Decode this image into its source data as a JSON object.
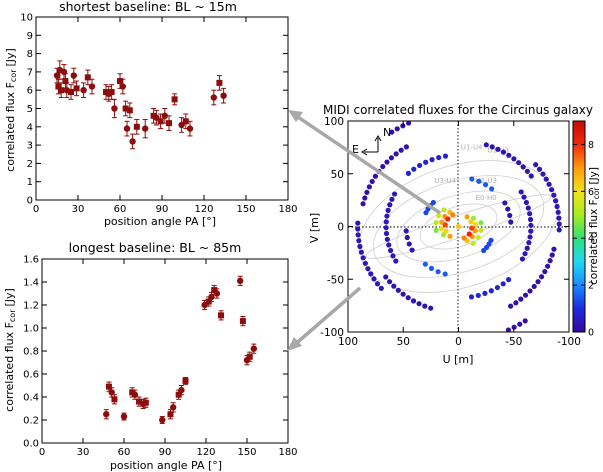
{
  "chart_data": [
    {
      "type": "scatter",
      "panel": "top-left",
      "title": "shortest baseline: BL ~ 15m",
      "xlabel": "position angle PA [°]",
      "ylabel": "correlated flux F_cor [Jy]",
      "ylabel_main": "correlated flux F",
      "ylabel_sub": "cor",
      "ylabel_unit": "[Jy]",
      "xlim": [
        0,
        180
      ],
      "ylim": [
        0,
        10
      ],
      "xticks": [
        0,
        30,
        60,
        90,
        120,
        150,
        180
      ],
      "yticks": [
        0,
        1,
        2,
        3,
        4,
        5,
        6,
        7,
        8,
        9,
        10
      ],
      "marker_color": "#8b0d0d",
      "points": [
        {
          "x": 15,
          "y": 6.8,
          "err": 0.4,
          "m": "c"
        },
        {
          "x": 16,
          "y": 6.2,
          "err": 0.4,
          "m": "s"
        },
        {
          "x": 17,
          "y": 7.1,
          "err": 0.5,
          "m": "c"
        },
        {
          "x": 18,
          "y": 6.0,
          "err": 0.4,
          "m": "s"
        },
        {
          "x": 20,
          "y": 7.0,
          "err": 0.4,
          "m": "c"
        },
        {
          "x": 21,
          "y": 6.5,
          "err": 0.4,
          "m": "s"
        },
        {
          "x": 22,
          "y": 6.0,
          "err": 0.4,
          "m": "c"
        },
        {
          "x": 25,
          "y": 5.9,
          "err": 0.4,
          "m": "s"
        },
        {
          "x": 27,
          "y": 6.8,
          "err": 0.4,
          "m": "c"
        },
        {
          "x": 29,
          "y": 6.1,
          "err": 0.4,
          "m": "s"
        },
        {
          "x": 34,
          "y": 6.0,
          "err": 0.4,
          "m": "c"
        },
        {
          "x": 37,
          "y": 6.7,
          "err": 0.4,
          "m": "s"
        },
        {
          "x": 40,
          "y": 6.2,
          "err": 0.4,
          "m": "c"
        },
        {
          "x": 50,
          "y": 5.9,
          "err": 0.4,
          "m": "s"
        },
        {
          "x": 52,
          "y": 5.8,
          "err": 0.4,
          "m": "c"
        },
        {
          "x": 54,
          "y": 5.9,
          "err": 0.4,
          "m": "s"
        },
        {
          "x": 56,
          "y": 5.0,
          "err": 0.5,
          "m": "c"
        },
        {
          "x": 60,
          "y": 6.5,
          "err": 0.4,
          "m": "s"
        },
        {
          "x": 62,
          "y": 6.2,
          "err": 0.4,
          "m": "c"
        },
        {
          "x": 64,
          "y": 5.0,
          "err": 0.4,
          "m": "s"
        },
        {
          "x": 65,
          "y": 3.9,
          "err": 0.4,
          "m": "c"
        },
        {
          "x": 67,
          "y": 4.9,
          "err": 0.4,
          "m": "s"
        },
        {
          "x": 69,
          "y": 3.2,
          "err": 0.4,
          "m": "c"
        },
        {
          "x": 72,
          "y": 4.0,
          "err": 0.4,
          "m": "s"
        },
        {
          "x": 78,
          "y": 3.9,
          "err": 0.5,
          "m": "c"
        },
        {
          "x": 84,
          "y": 4.6,
          "err": 0.4,
          "m": "s"
        },
        {
          "x": 86,
          "y": 4.5,
          "err": 0.4,
          "m": "c"
        },
        {
          "x": 89,
          "y": 4.3,
          "err": 0.4,
          "m": "s"
        },
        {
          "x": 92,
          "y": 4.6,
          "err": 0.4,
          "m": "c"
        },
        {
          "x": 95,
          "y": 4.2,
          "err": 0.4,
          "m": "s"
        },
        {
          "x": 99,
          "y": 5.5,
          "err": 0.3,
          "m": "s"
        },
        {
          "x": 104,
          "y": 4.1,
          "err": 0.4,
          "m": "c"
        },
        {
          "x": 107,
          "y": 4.3,
          "err": 0.4,
          "m": "s"
        },
        {
          "x": 110,
          "y": 3.9,
          "err": 0.4,
          "m": "c"
        },
        {
          "x": 127,
          "y": 5.6,
          "err": 0.4,
          "m": "c"
        },
        {
          "x": 131,
          "y": 6.4,
          "err": 0.4,
          "m": "s"
        },
        {
          "x": 134,
          "y": 5.7,
          "err": 0.4,
          "m": "c"
        }
      ]
    },
    {
      "type": "scatter",
      "panel": "bottom-left",
      "title": "longest baseline: BL ~ 85m",
      "xlabel": "position angle PA [°]",
      "ylabel": "correlated flux F_cor [Jy]",
      "ylabel_main": "correlated flux F",
      "ylabel_sub": "cor",
      "ylabel_unit": "[Jy]",
      "xlim": [
        0,
        180
      ],
      "ylim": [
        0,
        1.6
      ],
      "xticks": [
        0,
        30,
        60,
        90,
        120,
        150,
        180
      ],
      "yticks": [
        "0.0",
        "0.2",
        "0.4",
        "0.6",
        "0.8",
        "1.0",
        "1.2",
        "1.4",
        "1.6"
      ],
      "marker_color": "#8b0d0d",
      "points": [
        {
          "x": 47,
          "y": 0.25,
          "err": 0.04,
          "m": "c"
        },
        {
          "x": 49,
          "y": 0.49,
          "err": 0.04,
          "m": "s"
        },
        {
          "x": 51,
          "y": 0.44,
          "err": 0.04,
          "m": "c"
        },
        {
          "x": 53,
          "y": 0.38,
          "err": 0.04,
          "m": "s"
        },
        {
          "x": 60,
          "y": 0.23,
          "err": 0.03,
          "m": "c"
        },
        {
          "x": 66,
          "y": 0.44,
          "err": 0.04,
          "m": "s"
        },
        {
          "x": 68,
          "y": 0.42,
          "err": 0.04,
          "m": "c"
        },
        {
          "x": 71,
          "y": 0.36,
          "err": 0.04,
          "m": "s"
        },
        {
          "x": 74,
          "y": 0.34,
          "err": 0.04,
          "m": "c"
        },
        {
          "x": 76,
          "y": 0.35,
          "err": 0.04,
          "m": "s"
        },
        {
          "x": 88,
          "y": 0.2,
          "err": 0.03,
          "m": "c"
        },
        {
          "x": 94,
          "y": 0.25,
          "err": 0.04,
          "m": "s"
        },
        {
          "x": 96,
          "y": 0.31,
          "err": 0.04,
          "m": "c"
        },
        {
          "x": 100,
          "y": 0.42,
          "err": 0.04,
          "m": "s"
        },
        {
          "x": 102,
          "y": 0.46,
          "err": 0.04,
          "m": "c"
        },
        {
          "x": 105,
          "y": 0.54,
          "err": 0.03,
          "m": "s"
        },
        {
          "x": 119,
          "y": 1.2,
          "err": 0.04,
          "m": "c"
        },
        {
          "x": 122,
          "y": 1.23,
          "err": 0.04,
          "m": "s"
        },
        {
          "x": 124,
          "y": 1.27,
          "err": 0.04,
          "m": "c"
        },
        {
          "x": 126,
          "y": 1.33,
          "err": 0.04,
          "m": "s"
        },
        {
          "x": 128,
          "y": 1.3,
          "err": 0.04,
          "m": "c"
        },
        {
          "x": 131,
          "y": 1.11,
          "err": 0.04,
          "m": "s"
        },
        {
          "x": 145,
          "y": 1.41,
          "err": 0.04,
          "m": "c"
        },
        {
          "x": 147,
          "y": 1.06,
          "err": 0.04,
          "m": "s"
        },
        {
          "x": 150,
          "y": 0.72,
          "err": 0.04,
          "m": "c"
        },
        {
          "x": 152,
          "y": 0.75,
          "err": 0.04,
          "m": "s"
        },
        {
          "x": 155,
          "y": 0.82,
          "err": 0.04,
          "m": "c"
        }
      ]
    },
    {
      "type": "scatter",
      "panel": "right",
      "title": "MIDI correlated fluxes for the Circinus galaxy",
      "xlabel": "U [m]",
      "ylabel": "V [m]",
      "xlim": [
        100,
        -100
      ],
      "ylim": [
        -100,
        100
      ],
      "xticks": [
        100,
        50,
        0,
        -50,
        -100
      ],
      "yticks": [
        -100,
        -50,
        0,
        50,
        100
      ],
      "compass": {
        "north": "N",
        "east": "E"
      },
      "baseline_labels": [
        "U1-U4",
        "U1-U3",
        "U3-U4",
        "U2-U3",
        "E0-H0"
      ],
      "colorbar": {
        "label": "correlated flux F_cor [Jy]",
        "label_main": "correlated flux F",
        "label_sub": "cor",
        "label_unit": "[Jy]",
        "min": 0,
        "max": 9,
        "ticks": [
          0,
          2,
          4,
          6,
          8
        ],
        "stops": [
          "#3a0a9c",
          "#1c2ae0",
          "#1a8cff",
          "#22d8f2",
          "#30e07a",
          "#a8ec20",
          "#f4e21a",
          "#ff9a10",
          "#f22a0a",
          "#c40a08"
        ]
      },
      "tracks": [
        {
          "u": 83,
          "v": 69,
          "f": 0.1,
          "pa_from": 0,
          "pa_to": 34
        },
        {
          "u": 79,
          "v": 41,
          "f": 0.2,
          "pa_from": 32,
          "pa_to": 76
        },
        {
          "u": 63,
          "v": 18,
          "f": 0.4,
          "pa_from": 62,
          "pa_to": 120
        },
        {
          "u": 91,
          "v": -6,
          "f": 0.4,
          "pa_from": 88,
          "pa_to": 130
        },
        {
          "u": 73,
          "v": -36,
          "f": 0.3,
          "pa_from": 126,
          "pa_to": 162
        },
        {
          "u": 35,
          "v": 58,
          "f": 0.8,
          "pa_from": 10,
          "pa_to": 42
        },
        {
          "u": 44,
          "v": -18,
          "f": 0.3,
          "pa_from": 95,
          "pa_to": 118
        },
        {
          "u": 24,
          "v": -40,
          "f": 1.5,
          "pa_from": 140,
          "pa_to": 165
        },
        {
          "u": 26,
          "v": 19,
          "f": 1.3,
          "pa_from": 45,
          "pa_to": 66
        },
        {
          "u": 16,
          "v": 13,
          "f": 5.0,
          "pa_from": 40,
          "pa_to": 100
        },
        {
          "u": 12,
          "v": 10,
          "f": 6.5,
          "pa_from": 30,
          "pa_to": 120
        },
        {
          "u": 9,
          "v": 8,
          "f": 7.5,
          "pa_from": 25,
          "pa_to": 140
        },
        {
          "u": 0,
          "v": 0,
          "f": 8.5,
          "pa_from": 0,
          "pa_to": 0
        }
      ]
    }
  ]
}
